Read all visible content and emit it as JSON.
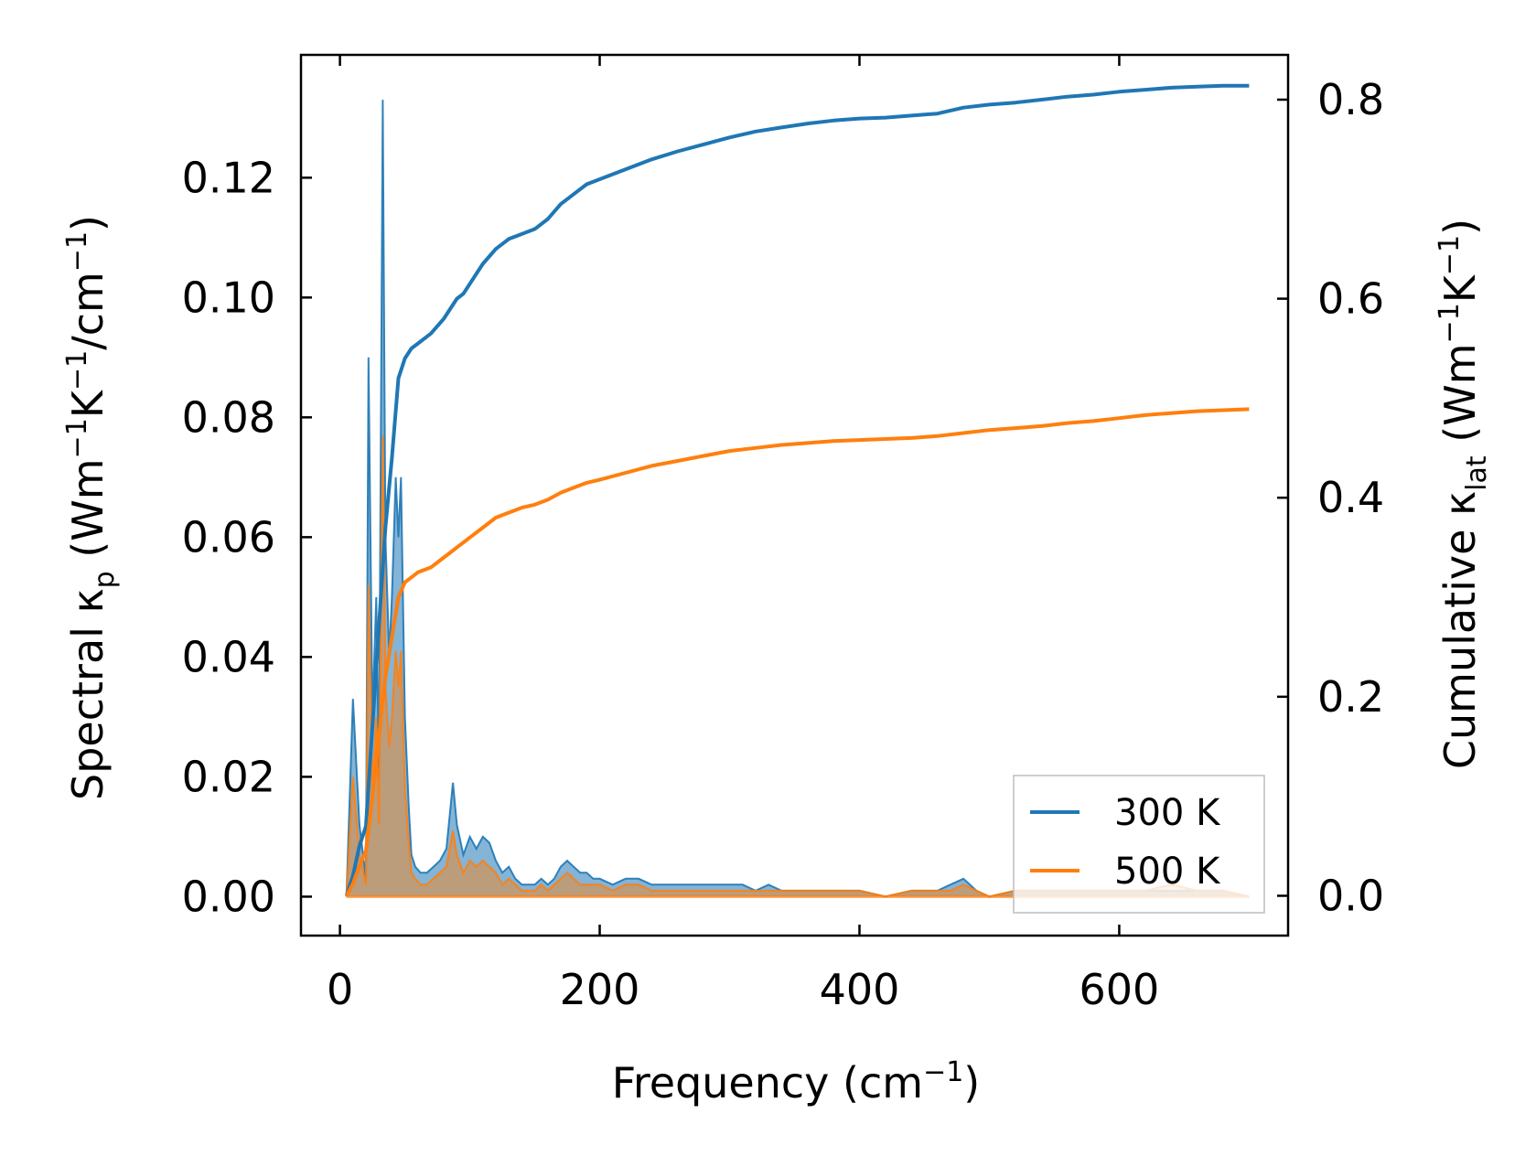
{
  "chart_data": {
    "type": "line",
    "xlabel": {
      "main": "Frequency (cm",
      "sup": "−1",
      "tail": ")"
    },
    "ylabel_left": {
      "p1": "Spectral κ",
      "sub1": "p",
      "p2": " (Wm",
      "sup1": "−1",
      "p3": "K",
      "sup2": "−1",
      "p4": "/cm",
      "sup3": "−1",
      "p5": ")"
    },
    "ylabel_right": {
      "p1": "Cumulative κ",
      "sub1": "lat",
      "p2": " (Wm",
      "sup1": "−1",
      "p3": "K",
      "sup2": "−1",
      "p4": ")"
    },
    "xlim": [
      -30,
      730
    ],
    "ylim_left": [
      -0.0065,
      0.1405
    ],
    "ylim_right": [
      -0.04,
      0.845
    ],
    "x_ticks": [
      0,
      200,
      400,
      600
    ],
    "x_tick_labels": [
      "0",
      "200",
      "400",
      "600"
    ],
    "y_left_ticks": [
      0,
      0.02,
      0.04,
      0.06,
      0.08,
      0.1,
      0.12
    ],
    "y_left_tick_labels": [
      "0.00",
      "0.02",
      "0.04",
      "0.06",
      "0.08",
      "0.10",
      "0.12"
    ],
    "y_right_ticks": [
      0,
      0.2,
      0.4,
      0.6,
      0.8
    ],
    "y_right_tick_labels": [
      "0.0",
      "0.2",
      "0.4",
      "0.6",
      "0.8"
    ],
    "legend": {
      "position": "lower-right",
      "entries": [
        "300 K",
        "500 K"
      ]
    },
    "colors": {
      "300K": "#1f77b4",
      "500K": "#ff7f0e",
      "axis": "#000000"
    },
    "series": [
      {
        "name": "300 K",
        "color": "#1f77b4",
        "spectral": {
          "x": [
            5,
            10,
            15,
            20,
            22,
            25,
            28,
            30,
            33,
            35,
            38,
            40,
            43,
            45,
            47,
            50,
            53,
            55,
            58,
            62,
            67,
            72,
            77,
            82,
            87,
            90,
            95,
            100,
            105,
            110,
            115,
            120,
            125,
            130,
            135,
            140,
            145,
            150,
            155,
            160,
            165,
            170,
            175,
            180,
            185,
            190,
            195,
            200,
            210,
            220,
            230,
            240,
            250,
            260,
            270,
            280,
            290,
            300,
            310,
            320,
            330,
            340,
            350,
            360,
            370,
            380,
            390,
            400,
            420,
            440,
            460,
            470,
            480,
            490,
            500,
            520,
            540,
            560,
            580,
            600,
            620,
            640,
            660,
            680,
            700
          ],
          "y": [
            0.0,
            0.033,
            0.012,
            0.003,
            0.09,
            0.03,
            0.05,
            0.02,
            0.133,
            0.06,
            0.04,
            0.05,
            0.07,
            0.06,
            0.07,
            0.03,
            0.015,
            0.007,
            0.005,
            0.004,
            0.004,
            0.005,
            0.006,
            0.008,
            0.019,
            0.012,
            0.007,
            0.01,
            0.008,
            0.01,
            0.009,
            0.006,
            0.004,
            0.005,
            0.003,
            0.002,
            0.002,
            0.002,
            0.003,
            0.002,
            0.003,
            0.005,
            0.006,
            0.005,
            0.004,
            0.004,
            0.003,
            0.003,
            0.002,
            0.003,
            0.003,
            0.002,
            0.002,
            0.002,
            0.002,
            0.002,
            0.002,
            0.002,
            0.002,
            0.001,
            0.002,
            0.001,
            0.001,
            0.001,
            0.001,
            0.001,
            0.001,
            0.001,
            0.0,
            0.001,
            0.001,
            0.002,
            0.003,
            0.001,
            0.0,
            0.001,
            0.001,
            0.001,
            0.001,
            0.001,
            0.001,
            0.001,
            0.001,
            0.001,
            0.0
          ]
        },
        "cumulative": {
          "x": [
            5,
            10,
            15,
            20,
            25,
            30,
            35,
            40,
            45,
            50,
            55,
            60,
            70,
            80,
            85,
            90,
            95,
            100,
            105,
            110,
            120,
            130,
            140,
            150,
            160,
            170,
            180,
            190,
            200,
            220,
            240,
            260,
            280,
            300,
            320,
            340,
            360,
            380,
            400,
            420,
            440,
            460,
            480,
            500,
            520,
            540,
            560,
            580,
            600,
            620,
            640,
            660,
            680,
            700
          ],
          "y": [
            0.0,
            0.02,
            0.05,
            0.07,
            0.17,
            0.27,
            0.37,
            0.44,
            0.52,
            0.54,
            0.55,
            0.555,
            0.565,
            0.58,
            0.59,
            0.6,
            0.605,
            0.615,
            0.625,
            0.635,
            0.65,
            0.66,
            0.665,
            0.67,
            0.68,
            0.695,
            0.705,
            0.715,
            0.72,
            0.73,
            0.74,
            0.748,
            0.755,
            0.762,
            0.768,
            0.772,
            0.776,
            0.779,
            0.781,
            0.782,
            0.784,
            0.786,
            0.792,
            0.795,
            0.797,
            0.8,
            0.803,
            0.805,
            0.808,
            0.81,
            0.812,
            0.813,
            0.814,
            0.814
          ]
        }
      },
      {
        "name": "500 K",
        "color": "#ff7f0e",
        "spectral": {
          "x": [
            5,
            10,
            15,
            20,
            22,
            25,
            28,
            30,
            33,
            35,
            38,
            40,
            43,
            45,
            47,
            50,
            53,
            55,
            58,
            62,
            67,
            72,
            77,
            82,
            87,
            90,
            95,
            100,
            105,
            110,
            115,
            120,
            125,
            130,
            135,
            140,
            145,
            150,
            155,
            160,
            165,
            170,
            175,
            180,
            185,
            190,
            195,
            200,
            210,
            220,
            230,
            240,
            250,
            260,
            270,
            280,
            290,
            300,
            310,
            320,
            330,
            340,
            350,
            360,
            370,
            380,
            390,
            400,
            420,
            440,
            460,
            470,
            480,
            490,
            500,
            520,
            540,
            560,
            580,
            600,
            620,
            640,
            660,
            680,
            700
          ],
          "y": [
            0.0,
            0.02,
            0.007,
            0.002,
            0.052,
            0.018,
            0.03,
            0.012,
            0.077,
            0.035,
            0.025,
            0.03,
            0.041,
            0.035,
            0.041,
            0.018,
            0.009,
            0.004,
            0.003,
            0.002,
            0.002,
            0.003,
            0.004,
            0.005,
            0.011,
            0.007,
            0.004,
            0.006,
            0.005,
            0.006,
            0.005,
            0.004,
            0.002,
            0.003,
            0.002,
            0.001,
            0.001,
            0.001,
            0.002,
            0.001,
            0.002,
            0.003,
            0.004,
            0.003,
            0.002,
            0.002,
            0.002,
            0.002,
            0.001,
            0.002,
            0.002,
            0.001,
            0.001,
            0.001,
            0.001,
            0.001,
            0.001,
            0.001,
            0.001,
            0.001,
            0.001,
            0.001,
            0.001,
            0.001,
            0.001,
            0.001,
            0.001,
            0.001,
            0.0,
            0.001,
            0.001,
            0.001,
            0.002,
            0.001,
            0.0,
            0.001,
            0.001,
            0.001,
            0.001,
            0.001,
            0.001,
            0.002,
            0.001,
            0.001,
            0.0
          ]
        },
        "cumulative": {
          "x": [
            5,
            10,
            15,
            20,
            25,
            30,
            35,
            40,
            45,
            50,
            55,
            60,
            70,
            80,
            85,
            90,
            95,
            100,
            105,
            110,
            120,
            130,
            140,
            150,
            160,
            170,
            180,
            190,
            200,
            220,
            240,
            260,
            280,
            300,
            320,
            340,
            360,
            380,
            400,
            420,
            440,
            460,
            480,
            500,
            520,
            540,
            560,
            580,
            600,
            620,
            640,
            660,
            680,
            700
          ],
          "y": [
            0.0,
            0.012,
            0.03,
            0.045,
            0.1,
            0.16,
            0.22,
            0.26,
            0.3,
            0.315,
            0.32,
            0.325,
            0.33,
            0.34,
            0.345,
            0.35,
            0.355,
            0.36,
            0.365,
            0.37,
            0.38,
            0.385,
            0.39,
            0.393,
            0.398,
            0.405,
            0.41,
            0.415,
            0.418,
            0.425,
            0.432,
            0.437,
            0.442,
            0.447,
            0.45,
            0.453,
            0.455,
            0.457,
            0.458,
            0.459,
            0.46,
            0.462,
            0.465,
            0.468,
            0.47,
            0.472,
            0.475,
            0.477,
            0.48,
            0.483,
            0.485,
            0.487,
            0.488,
            0.489
          ]
        }
      }
    ]
  }
}
